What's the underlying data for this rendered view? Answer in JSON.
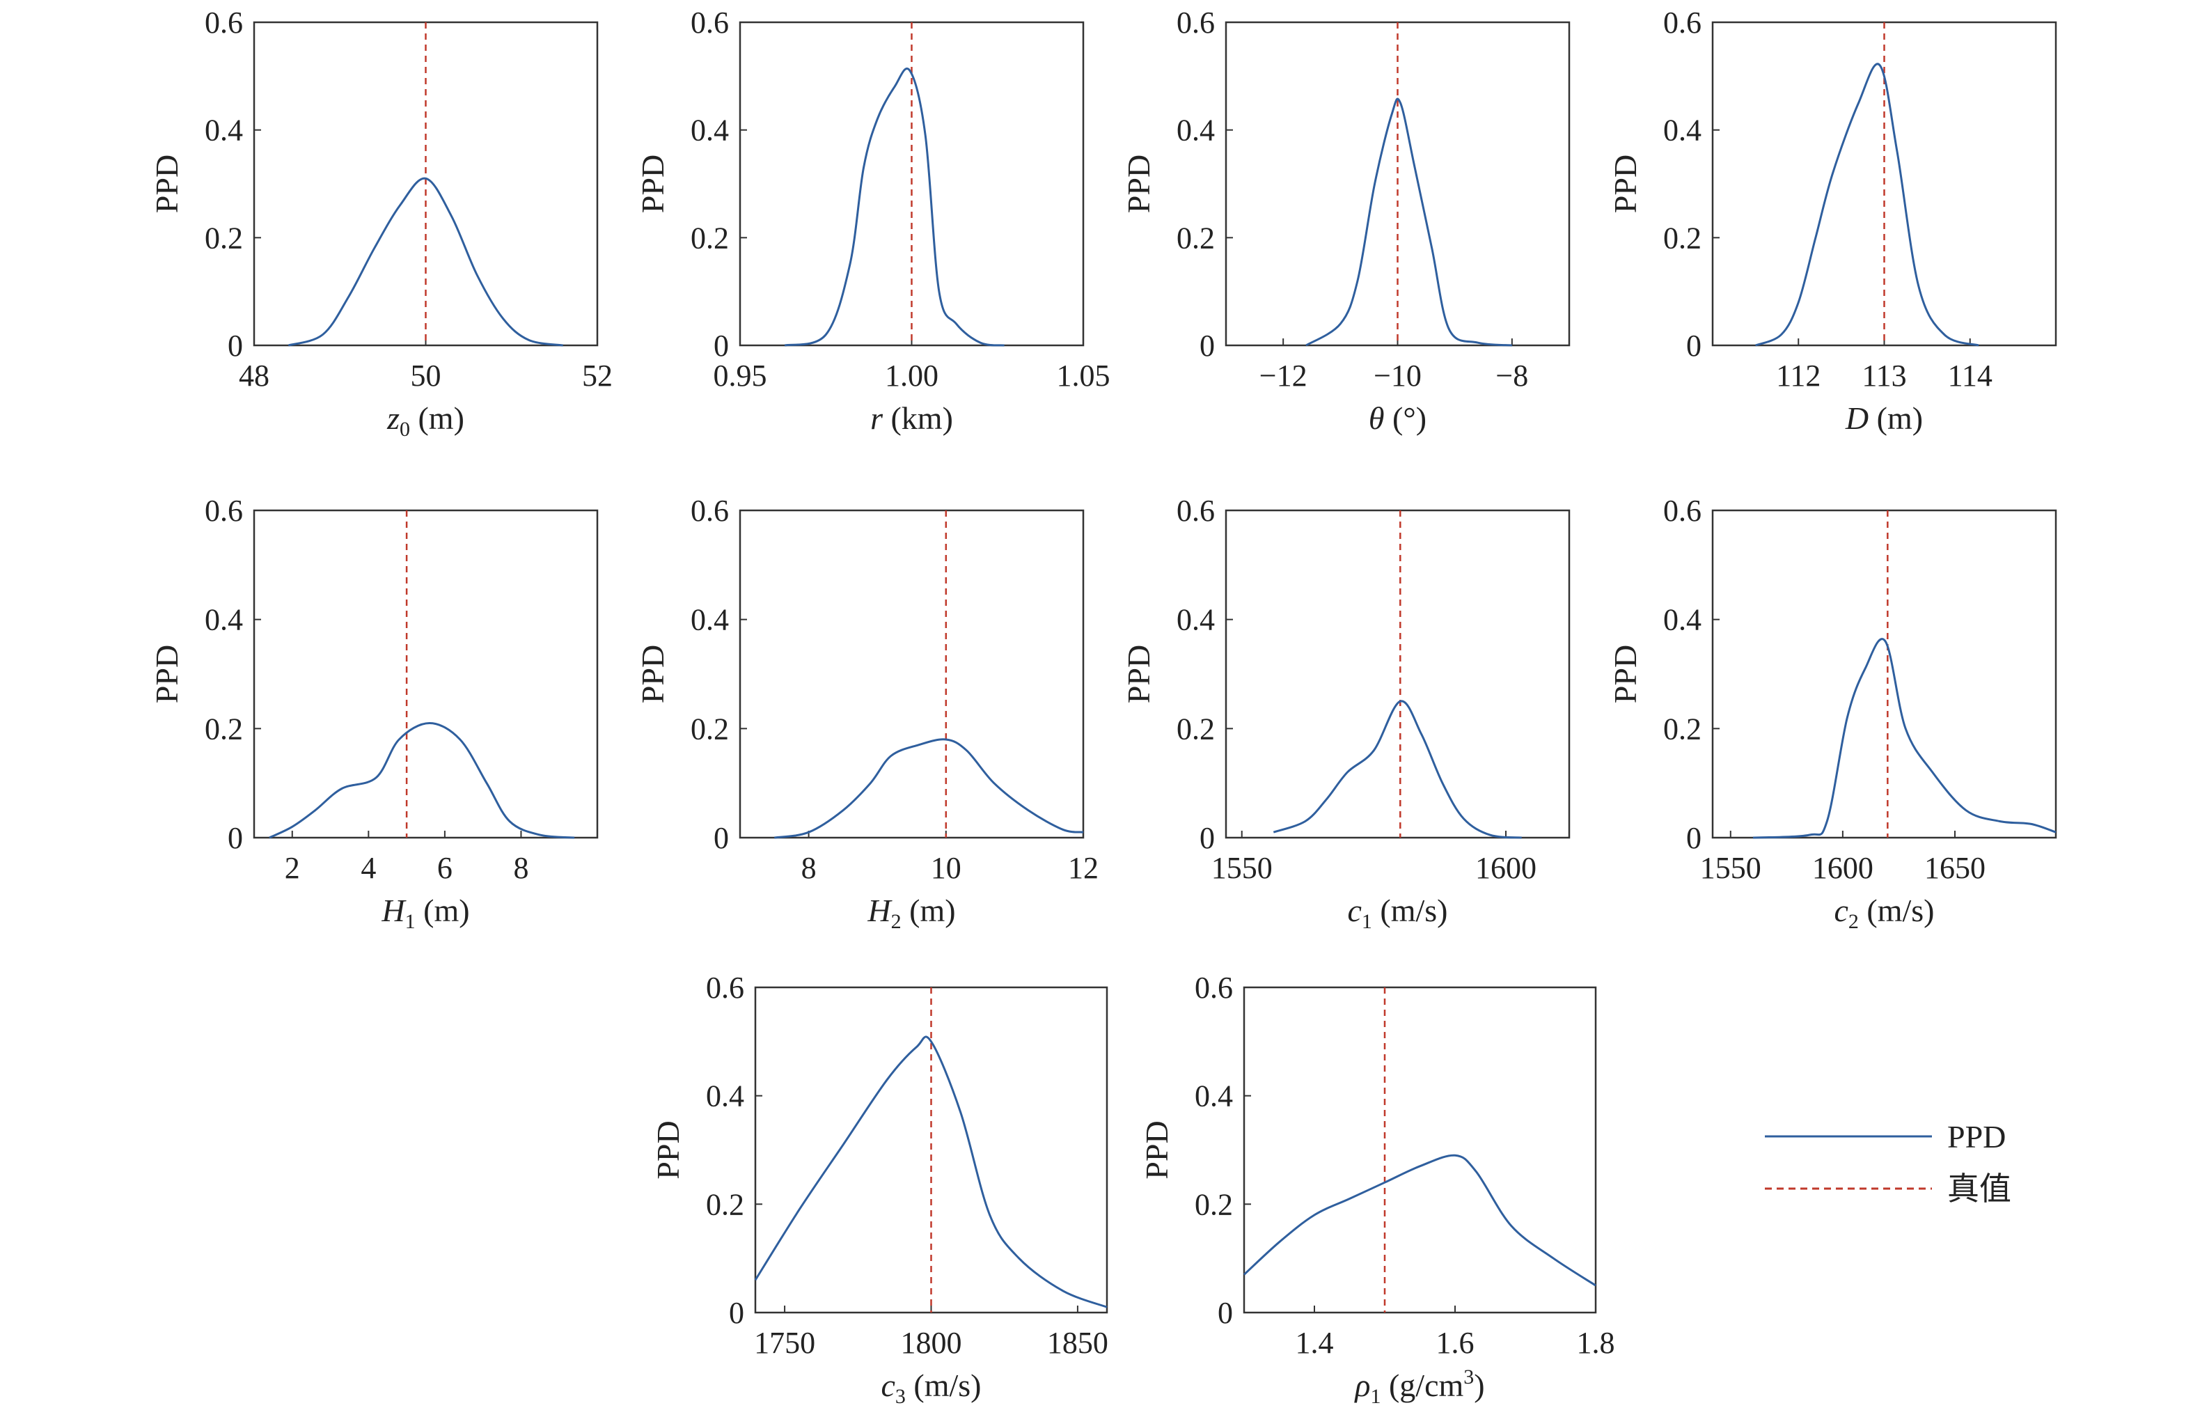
{
  "colors": {
    "ppd": "#2f5f9e",
    "true_value": "#c0392b",
    "axis": "#333333"
  },
  "legend": {
    "entries": [
      {
        "label": "PPD",
        "style": "solid"
      },
      {
        "label": "真值",
        "style": "dashed"
      }
    ]
  },
  "chart_data": [
    {
      "type": "line",
      "xlabel": "z0 (m)",
      "xlabel_main": "z",
      "xlabel_sub": "0",
      "xlabel_rest": " (m)",
      "xlabel_italic": true,
      "ylabel": "PPD",
      "xlim": [
        48,
        52
      ],
      "ylim": [
        0,
        0.6
      ],
      "xticks": [
        48,
        50,
        52
      ],
      "yticks": [
        0,
        0.2,
        0.4,
        0.6
      ],
      "xticklabels": [
        "48",
        "50",
        "52"
      ],
      "true_value": 50,
      "series": [
        {
          "name": "PPD",
          "x": [
            48.4,
            48.8,
            49.1,
            49.4,
            49.7,
            50.0,
            50.3,
            50.6,
            50.9,
            51.2,
            51.6
          ],
          "y": [
            0,
            0.02,
            0.09,
            0.18,
            0.26,
            0.31,
            0.24,
            0.13,
            0.05,
            0.01,
            0
          ]
        }
      ]
    },
    {
      "type": "line",
      "xlabel": "r (km)",
      "xlabel_main": "r",
      "xlabel_sub": "",
      "xlabel_rest": " (km)",
      "xlabel_italic": true,
      "ylabel": "PPD",
      "xlim": [
        0.95,
        1.05
      ],
      "ylim": [
        0,
        0.6
      ],
      "xticks": [
        0.95,
        1.0,
        1.05
      ],
      "yticks": [
        0,
        0.2,
        0.4,
        0.6
      ],
      "xticklabels": [
        "0.95",
        "1.00",
        "1.05"
      ],
      "true_value": 1.0,
      "series": [
        {
          "name": "PPD",
          "x": [
            0.963,
            0.975,
            0.982,
            0.986,
            0.99,
            0.995,
            0.9995,
            1.004,
            1.008,
            1.013,
            1.02,
            1.027
          ],
          "y": [
            0,
            0.02,
            0.15,
            0.33,
            0.42,
            0.48,
            0.51,
            0.39,
            0.1,
            0.04,
            0.005,
            0
          ]
        }
      ]
    },
    {
      "type": "line",
      "xlabel": "θ (°)",
      "xlabel_main": "θ",
      "xlabel_sub": "",
      "xlabel_rest": " (°)",
      "xlabel_italic": true,
      "ylabel": "PPD",
      "xlim": [
        -13,
        -7
      ],
      "ylim": [
        0,
        0.6
      ],
      "xticks": [
        -12,
        -10,
        -8
      ],
      "yticks": [
        0,
        0.2,
        0.4,
        0.6
      ],
      "xticklabels": [
        "−12",
        "−10",
        "−8"
      ],
      "true_value": -10,
      "series": [
        {
          "name": "PPD",
          "x": [
            -11.6,
            -11.0,
            -10.7,
            -10.4,
            -10.1,
            -9.95,
            -9.7,
            -9.4,
            -9.1,
            -8.6,
            -8.0
          ],
          "y": [
            0,
            0.04,
            0.12,
            0.3,
            0.43,
            0.45,
            0.33,
            0.18,
            0.03,
            0.005,
            0
          ]
        }
      ]
    },
    {
      "type": "line",
      "xlabel": "D (m)",
      "xlabel_main": "D",
      "xlabel_sub": "",
      "xlabel_rest": " (m)",
      "xlabel_italic": true,
      "ylabel": "PPD",
      "xlim": [
        111,
        115
      ],
      "ylim": [
        0,
        0.6
      ],
      "xticks": [
        112,
        113,
        114
      ],
      "yticks": [
        0,
        0.2,
        0.4,
        0.6
      ],
      "xticklabels": [
        "112",
        "113",
        "114"
      ],
      "true_value": 113,
      "series": [
        {
          "name": "PPD",
          "x": [
            111.5,
            111.8,
            112.0,
            112.2,
            112.4,
            112.7,
            112.95,
            113.15,
            113.4,
            113.7,
            114.1
          ],
          "y": [
            0,
            0.02,
            0.08,
            0.2,
            0.32,
            0.45,
            0.52,
            0.36,
            0.11,
            0.02,
            0
          ]
        }
      ]
    },
    {
      "type": "line",
      "xlabel": "H1 (m)",
      "xlabel_main": "H",
      "xlabel_sub": "1",
      "xlabel_rest": " (m)",
      "xlabel_italic": true,
      "ylabel": "PPD",
      "xlim": [
        1,
        10
      ],
      "ylim": [
        0,
        0.6
      ],
      "xticks": [
        2,
        4,
        6,
        8
      ],
      "yticks": [
        0,
        0.2,
        0.4,
        0.6
      ],
      "xticklabels": [
        "2",
        "4",
        "6",
        "8"
      ],
      "true_value": 5,
      "series": [
        {
          "name": "PPD",
          "x": [
            1.4,
            2.0,
            2.6,
            3.3,
            4.2,
            4.8,
            5.6,
            6.4,
            7.1,
            7.7,
            8.5,
            9.4
          ],
          "y": [
            0,
            0.02,
            0.05,
            0.09,
            0.11,
            0.18,
            0.21,
            0.18,
            0.1,
            0.03,
            0.005,
            0
          ]
        }
      ]
    },
    {
      "type": "line",
      "xlabel": "H2 (m)",
      "xlabel_main": "H",
      "xlabel_sub": "2",
      "xlabel_rest": " (m)",
      "xlabel_italic": true,
      "ylabel": "PPD",
      "xlim": [
        7,
        12
      ],
      "ylim": [
        0,
        0.6
      ],
      "xticks": [
        8,
        10,
        12
      ],
      "yticks": [
        0,
        0.2,
        0.4,
        0.6
      ],
      "xticklabels": [
        "8",
        "10",
        "12"
      ],
      "true_value": 10,
      "series": [
        {
          "name": "PPD",
          "x": [
            7.5,
            8.0,
            8.5,
            8.9,
            9.2,
            9.6,
            10.0,
            10.3,
            10.7,
            11.2,
            11.7,
            12.0
          ],
          "y": [
            0,
            0.01,
            0.05,
            0.1,
            0.15,
            0.17,
            0.18,
            0.16,
            0.1,
            0.05,
            0.015,
            0.01
          ]
        }
      ]
    },
    {
      "type": "line",
      "xlabel": "c1 (m/s)",
      "xlabel_main": "c",
      "xlabel_sub": "1",
      "xlabel_rest": " (m/s)",
      "xlabel_italic": true,
      "ylabel": "PPD",
      "xlim": [
        1547,
        1612
      ],
      "ylim": [
        0,
        0.6
      ],
      "xticks": [
        1550,
        1600
      ],
      "yticks": [
        0,
        0.2,
        0.4,
        0.6
      ],
      "xticklabels": [
        "1550",
        "1600"
      ],
      "true_value": 1580,
      "series": [
        {
          "name": "PPD",
          "x": [
            1556,
            1562,
            1566,
            1570,
            1575,
            1580,
            1584,
            1588,
            1592,
            1597,
            1603
          ],
          "y": [
            0.01,
            0.03,
            0.07,
            0.12,
            0.16,
            0.25,
            0.19,
            0.1,
            0.035,
            0.005,
            0
          ]
        }
      ]
    },
    {
      "type": "line",
      "xlabel": "c2 (m/s)",
      "xlabel_main": "c",
      "xlabel_sub": "2",
      "xlabel_rest": " (m/s)",
      "xlabel_italic": true,
      "ylabel": "PPD",
      "xlim": [
        1542,
        1695
      ],
      "ylim": [
        0,
        0.6
      ],
      "xticks": [
        1550,
        1600,
        1650
      ],
      "yticks": [
        0,
        0.2,
        0.4,
        0.6
      ],
      "xticklabels": [
        "1550",
        "1600",
        "1650"
      ],
      "true_value": 1620,
      "series": [
        {
          "name": "PPD",
          "x": [
            1560,
            1585,
            1593,
            1602,
            1610,
            1619,
            1628,
            1640,
            1655,
            1670,
            1684,
            1695
          ],
          "y": [
            0,
            0.005,
            0.03,
            0.22,
            0.31,
            0.36,
            0.2,
            0.12,
            0.05,
            0.03,
            0.025,
            0.01
          ]
        }
      ]
    },
    {
      "type": "line",
      "xlabel": "c3 (m/s)",
      "xlabel_main": "c",
      "xlabel_sub": "3",
      "xlabel_rest": " (m/s)",
      "xlabel_italic": true,
      "ylabel": "PPD",
      "xlim": [
        1740,
        1860
      ],
      "ylim": [
        0,
        0.6
      ],
      "xticks": [
        1750,
        1800,
        1850
      ],
      "yticks": [
        0,
        0.2,
        0.4,
        0.6
      ],
      "xticklabels": [
        "1750",
        "1800",
        "1850"
      ],
      "true_value": 1800,
      "series": [
        {
          "name": "PPD",
          "x": [
            1740,
            1755,
            1770,
            1785,
            1795,
            1800,
            1810,
            1820,
            1830,
            1845,
            1860
          ],
          "y": [
            0.06,
            0.19,
            0.31,
            0.43,
            0.49,
            0.5,
            0.37,
            0.18,
            0.1,
            0.04,
            0.01
          ]
        }
      ]
    },
    {
      "type": "line",
      "xlabel": "ρ1 (g/cm3)",
      "xlabel_main": "ρ",
      "xlabel_sub": "1",
      "xlabel_rest": " (g/cm",
      "xlabel_sup": "3",
      "xlabel_tail": ")",
      "xlabel_italic": true,
      "ylabel": "PPD",
      "xlim": [
        1.3,
        1.8
      ],
      "ylim": [
        0,
        0.6
      ],
      "xticks": [
        1.4,
        1.6,
        1.8
      ],
      "yticks": [
        0,
        0.2,
        0.4,
        0.6
      ],
      "xticklabels": [
        "1.4",
        "1.6",
        "1.8"
      ],
      "true_value": 1.5,
      "series": [
        {
          "name": "PPD",
          "x": [
            1.3,
            1.35,
            1.4,
            1.45,
            1.5,
            1.55,
            1.6,
            1.63,
            1.68,
            1.74,
            1.8
          ],
          "y": [
            0.07,
            0.13,
            0.18,
            0.21,
            0.24,
            0.27,
            0.29,
            0.26,
            0.16,
            0.1,
            0.05
          ]
        }
      ]
    }
  ]
}
